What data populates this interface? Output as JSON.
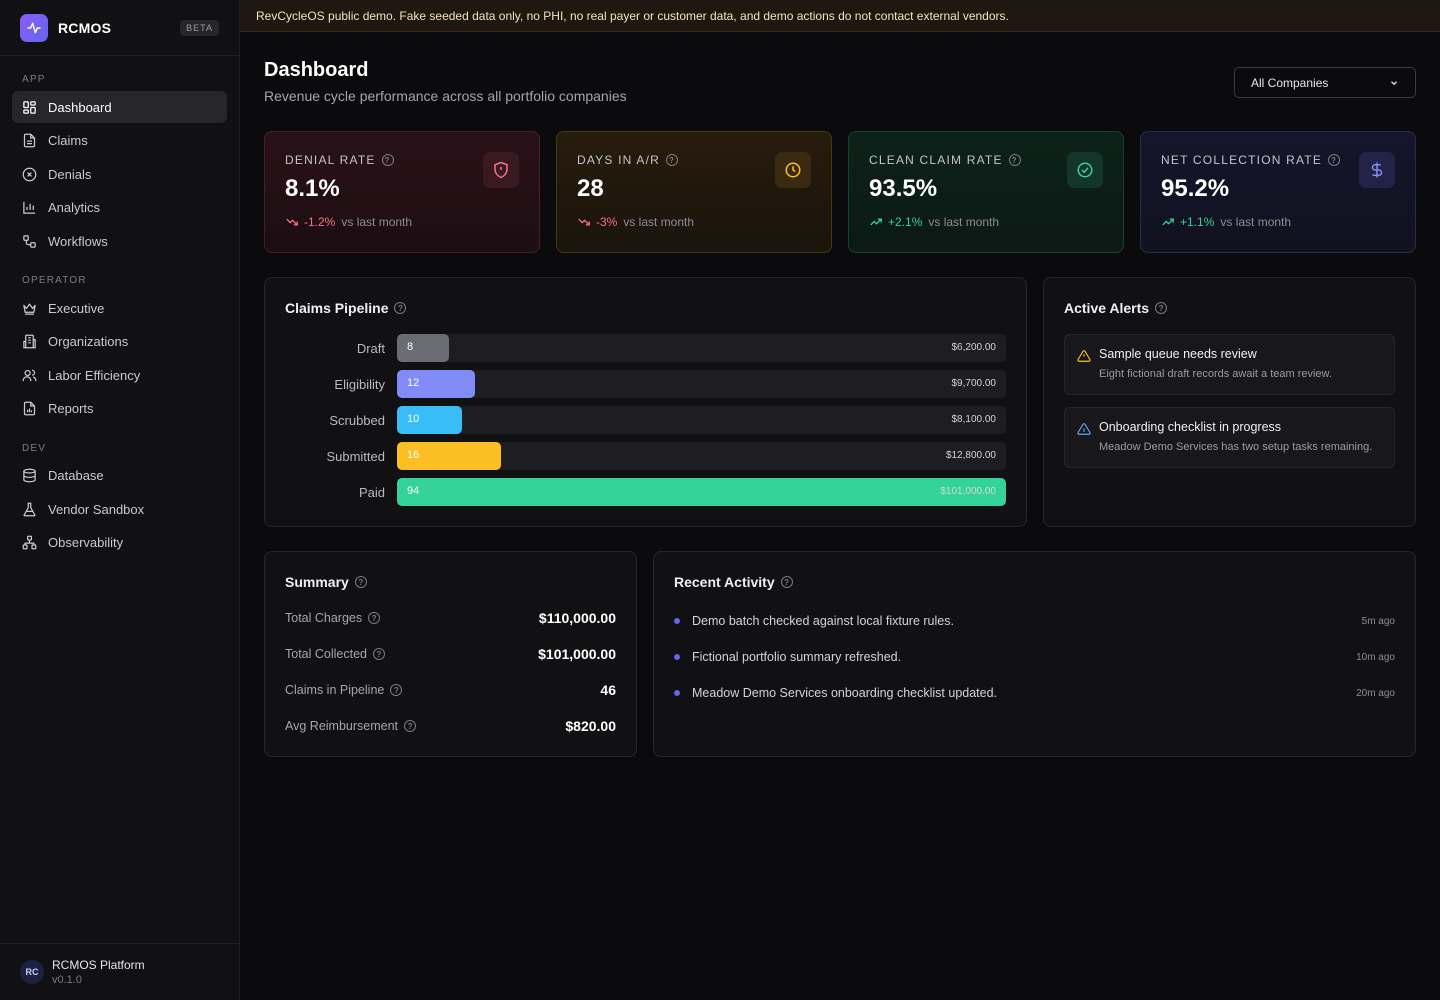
{
  "brand": {
    "name": "RCMOS",
    "badge": "BETA"
  },
  "sidebar": {
    "sections": [
      {
        "heading": "APP",
        "items": [
          "Dashboard",
          "Claims",
          "Denials",
          "Analytics",
          "Workflows"
        ]
      },
      {
        "heading": "OPERATOR",
        "items": [
          "Executive",
          "Organizations",
          "Labor Efficiency",
          "Reports"
        ]
      },
      {
        "heading": "DEV",
        "items": [
          "Database",
          "Vendor Sandbox",
          "Observability"
        ]
      }
    ],
    "footer": {
      "avatar": "RC",
      "name": "RCMOS Platform",
      "version": "v0.1.0"
    }
  },
  "banner": "RevCycleOS public demo. Fake seeded data only, no PHI, no real payer or customer data, and demo actions do not contact external vendors.",
  "header": {
    "title": "Dashboard",
    "subtitle": "Revenue cycle performance across all portfolio companies",
    "company_select": "All Companies"
  },
  "kpis": [
    {
      "label": "DENIAL RATE",
      "value": "8.1%",
      "delta": "-1.2%",
      "vs": "vs last month",
      "icon": "shield-alert-icon",
      "color": "#fb7185"
    },
    {
      "label": "DAYS IN A/R",
      "value": "28",
      "delta": "-3%",
      "vs": "vs last month",
      "icon": "clock-icon",
      "color": "#fbbf24"
    },
    {
      "label": "CLEAN CLAIM RATE",
      "value": "93.5%",
      "delta": "+2.1%",
      "vs": "vs last month",
      "icon": "check-circle-icon",
      "color": "#34d399"
    },
    {
      "label": "NET COLLECTION RATE",
      "value": "95.2%",
      "delta": "+1.1%",
      "vs": "vs last month",
      "icon": "dollar-icon",
      "color": "#818cf8"
    }
  ],
  "pipeline": {
    "title": "Claims Pipeline",
    "max_count": 94,
    "stages": [
      {
        "label": "Draft",
        "count": "8",
        "amount": "$6,200.00",
        "color": "#6b6b73"
      },
      {
        "label": "Eligibility",
        "count": "12",
        "amount": "$9,700.00",
        "color": "#818cf8"
      },
      {
        "label": "Scrubbed",
        "count": "10",
        "amount": "$8,100.00",
        "color": "#38bdf8"
      },
      {
        "label": "Submitted",
        "count": "16",
        "amount": "$12,800.00",
        "color": "#fbbf24"
      },
      {
        "label": "Paid",
        "count": "94",
        "amount": "$101,000.00",
        "color": "#34d399"
      }
    ]
  },
  "alerts": {
    "title": "Active Alerts",
    "items": [
      {
        "title": "Sample queue needs review",
        "body": "Eight fictional draft records await a team review.",
        "icon": "warning-triangle-icon",
        "color": "#fbbf24"
      },
      {
        "title": "Onboarding checklist in progress",
        "body": "Meadow Demo Services has two setup tasks remaining.",
        "icon": "info-triangle-icon",
        "color": "#60a5fa"
      }
    ]
  },
  "summary": {
    "title": "Summary",
    "rows": [
      {
        "label": "Total Charges",
        "value": "$110,000.00"
      },
      {
        "label": "Total Collected",
        "value": "$101,000.00"
      },
      {
        "label": "Claims in Pipeline",
        "value": "46"
      },
      {
        "label": "Avg Reimbursement",
        "value": "$820.00"
      }
    ]
  },
  "activity": {
    "title": "Recent Activity",
    "items": [
      {
        "text": "Demo batch checked against local fixture rules.",
        "time": "5m ago"
      },
      {
        "text": "Fictional portfolio summary refreshed.",
        "time": "10m ago"
      },
      {
        "text": "Meadow Demo Services onboarding checklist updated.",
        "time": "20m ago"
      }
    ]
  }
}
